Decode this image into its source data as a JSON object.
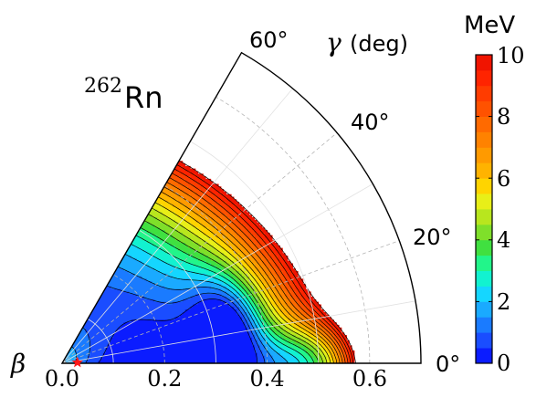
{
  "chart_data": {
    "type": "heatmap",
    "subtype": "polar-sector",
    "nucleus_mass": "262",
    "nucleus_symbol": "Rn",
    "radial_axis": {
      "symbol": "β",
      "range": [
        0.0,
        0.7
      ],
      "ticks": [
        "0.0",
        "0.2",
        "0.4",
        "0.6"
      ],
      "tick_values": [
        0.0,
        0.2,
        0.4,
        0.6
      ]
    },
    "angular_axis": {
      "symbol": "γ",
      "unit": "(deg)",
      "range": [
        0,
        60
      ],
      "ticks": [
        "0°",
        "20°",
        "40°",
        "60°"
      ],
      "tick_values": [
        0,
        20,
        40,
        60
      ]
    },
    "colorbar": {
      "unit": "MeV",
      "range": [
        0,
        10
      ],
      "ticks": [
        "0",
        "2",
        "4",
        "6",
        "8",
        "10"
      ],
      "tick_values": [
        0,
        2,
        4,
        6,
        8,
        10
      ],
      "colormap": "jet",
      "colors": [
        "#0b1cff",
        "#1a4dff",
        "#1a7bff",
        "#1aaaff",
        "#15d6ff",
        "#12f2d0",
        "#22f58a",
        "#40e040",
        "#7fdf2a",
        "#b8e61e",
        "#e8ef18",
        "#ffd400",
        "#ffb300",
        "#ff9a00",
        "#ff8200",
        "#ff6a00",
        "#ff5200",
        "#ff3c00",
        "#ff2400",
        "#f01400"
      ]
    },
    "minimum": {
      "beta": 0.03,
      "gamma": 3,
      "marker": "red-star"
    },
    "contour_step_MeV": 0.5,
    "cutoff_MeV": 10,
    "grid": true
  }
}
